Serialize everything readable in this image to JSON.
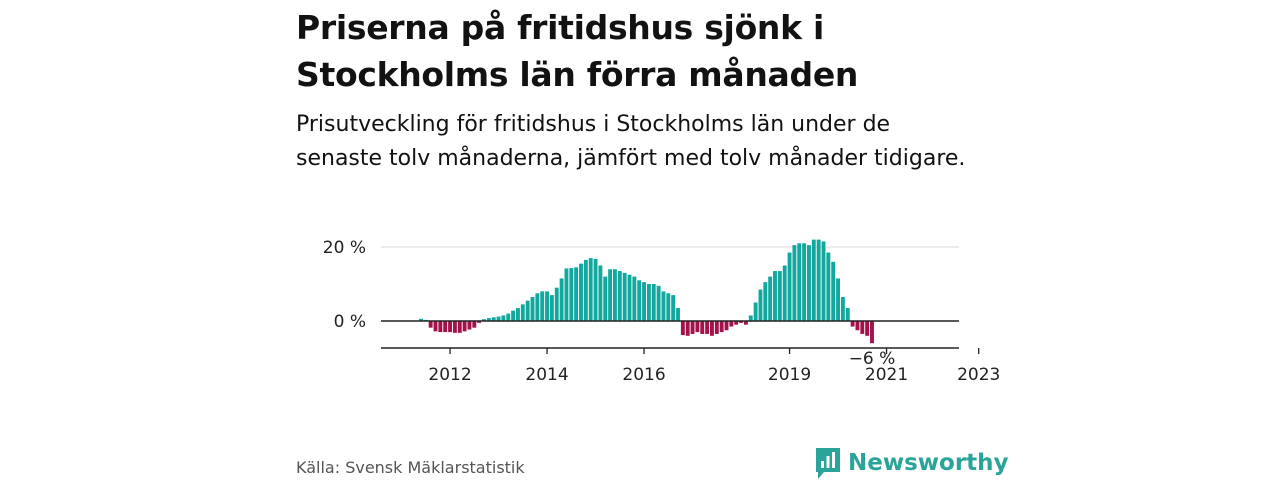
{
  "title": "Priserna på fritidshus sjönk i Stockholms län förra månaden",
  "subtitle": "Prisutveckling för fritidshus i Stockholms län under de senaste tolv månaderna, jämfört med tolv månader tidigare.",
  "source": "Källa: Svensk Mäklarstatistik",
  "brand": {
    "name": "Newsworthy",
    "icon": "newsworthy-logo-icon"
  },
  "colors": {
    "positive": "#13a89e",
    "negative": "#a3124a",
    "grid": "#d9d9d9",
    "axis": "#222222"
  },
  "chart_data": {
    "type": "bar",
    "unit": "%",
    "y_ticks": [
      {
        "value": 20,
        "label": "20 %"
      },
      {
        "value": 0,
        "label": "0 %"
      }
    ],
    "ylim": [
      -7,
      22
    ],
    "x_ticks": [
      {
        "label": "2012",
        "index": 6
      },
      {
        "label": "2014",
        "index": 26
      },
      {
        "label": "2016",
        "index": 46
      },
      {
        "label": "2019",
        "index": 76
      },
      {
        "label": "2021",
        "index": 96
      },
      {
        "label": "2023",
        "index": 115
      }
    ],
    "last_value_label": "−6 %",
    "values": [
      0.6,
      0.3,
      -1.8,
      -2.8,
      -3.0,
      -3.0,
      -3.0,
      -3.2,
      -3.2,
      -2.8,
      -2.3,
      -1.8,
      -0.5,
      0.5,
      0.8,
      1.0,
      1.2,
      1.5,
      2.0,
      2.8,
      3.5,
      4.5,
      5.5,
      6.5,
      7.5,
      8.0,
      8.0,
      7.0,
      9.0,
      11.5,
      14.2,
      14.3,
      14.5,
      15.5,
      16.5,
      17.0,
      16.8,
      15.0,
      12.0,
      14.0,
      14.0,
      13.5,
      13.0,
      12.5,
      12.0,
      11.0,
      10.5,
      10.0,
      10.0,
      9.5,
      8.0,
      7.5,
      7.0,
      3.5,
      -3.8,
      -4.0,
      -3.5,
      -3.0,
      -3.5,
      -3.5,
      -4.0,
      -3.5,
      -3.0,
      -2.5,
      -1.5,
      -1.0,
      -0.5,
      -1.0,
      1.5,
      5.0,
      8.5,
      10.5,
      12.0,
      13.5,
      13.5,
      15.0,
      18.5,
      20.5,
      21.0,
      21.0,
      20.5,
      22.0,
      22.0,
      21.5,
      18.5,
      16.0,
      11.5,
      6.5,
      3.5,
      -1.5,
      -2.5,
      -3.5,
      -4.0,
      -6.0
    ]
  }
}
